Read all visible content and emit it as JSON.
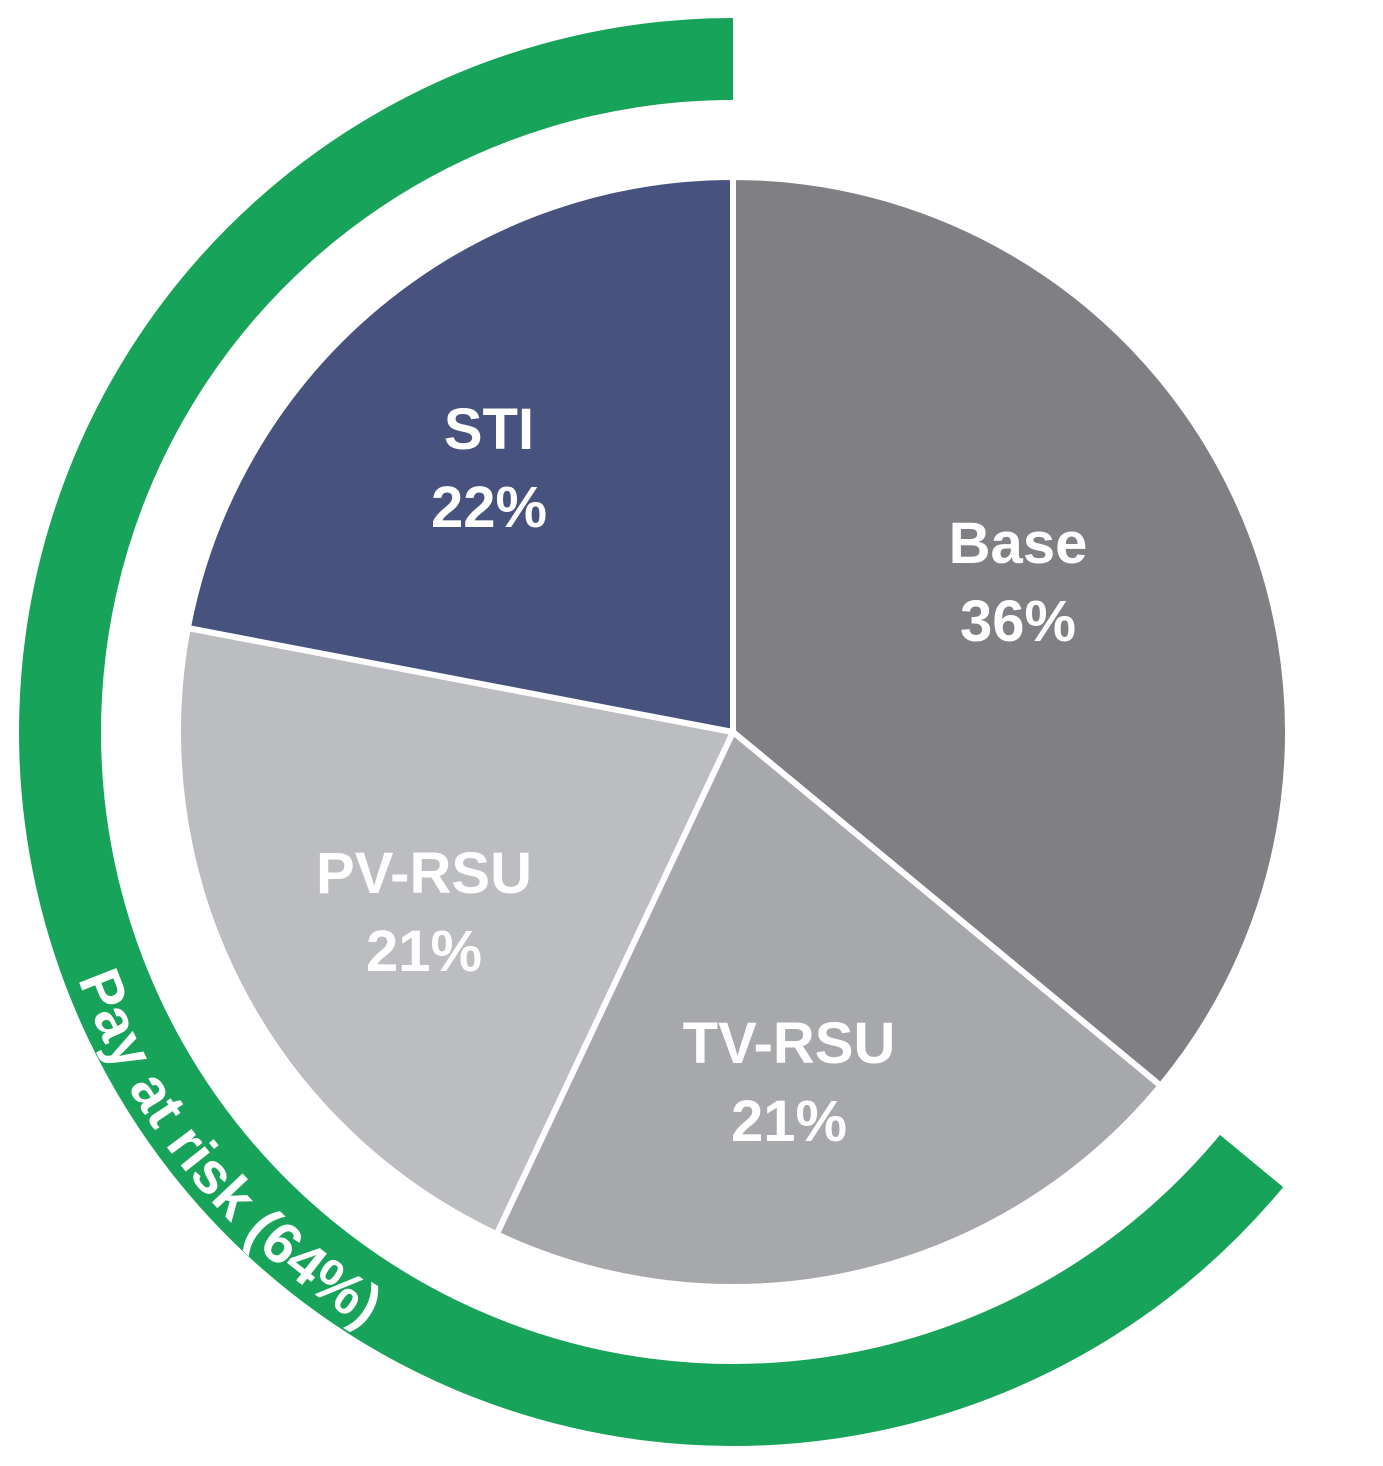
{
  "chart_data": {
    "type": "pie",
    "slices": [
      {
        "label": "Base",
        "value": 36,
        "value_label": "36%",
        "color": "#808084"
      },
      {
        "label": "TV-RSU",
        "value": 21,
        "value_label": "21%",
        "color": "#a7a8ab"
      },
      {
        "label": "PV-RSU",
        "value": 21,
        "value_label": "21%",
        "color": "#bcbdc0"
      },
      {
        "label": "STI",
        "value": 22,
        "value_label": "22%",
        "color": "#47527f"
      }
    ],
    "ring": {
      "label": "Pay at risk (64%)",
      "value": 64,
      "color": "#18a35a"
    },
    "separator_color": "#ffffff"
  }
}
